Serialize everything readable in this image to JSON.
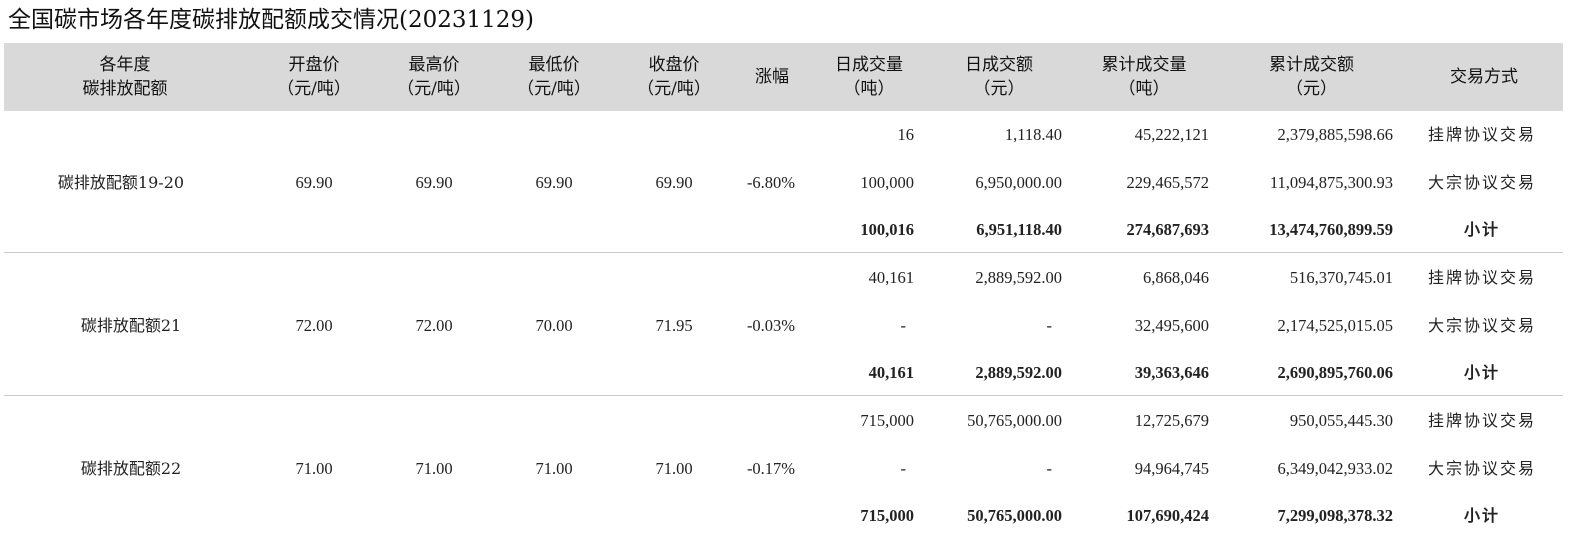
{
  "title": "全国碳市场各年度碳排放配额成交情况(20231129)",
  "headers": [
    {
      "l1": "各年度",
      "l2": "碳排放配额"
    },
    {
      "l1": "开盘价",
      "l2": "（元/吨）"
    },
    {
      "l1": "最高价",
      "l2": "（元/吨）"
    },
    {
      "l1": "最低价",
      "l2": "（元/吨）"
    },
    {
      "l1": "收盘价",
      "l2": "（元/吨）"
    },
    {
      "l1": "涨幅",
      "l2": ""
    },
    {
      "l1": "日成交量",
      "l2": "（吨）"
    },
    {
      "l1": "日成交额",
      "l2": "（元）"
    },
    {
      "l1": "累计成交量",
      "l2": "（吨）"
    },
    {
      "l1": "累计成交额",
      "l2": "（元）"
    },
    {
      "l1": "交易方式",
      "l2": ""
    }
  ],
  "groups": [
    {
      "name": "碳排放配额19-20",
      "open": "69.90",
      "high": "69.90",
      "low": "69.90",
      "close": "69.90",
      "change": "-6.80%",
      "rows": [
        {
          "vol": "16",
          "amt": "1,118.40",
          "cum_vol": "45,222,121",
          "cum_amt": "2,379,885,598.66",
          "mode": "挂牌协议交易"
        },
        {
          "vol": "100,000",
          "amt": "6,950,000.00",
          "cum_vol": "229,465,572",
          "cum_amt": "11,094,875,300.93",
          "mode": "大宗协议交易"
        },
        {
          "vol": "100,016",
          "amt": "6,951,118.40",
          "cum_vol": "274,687,693",
          "cum_amt": "13,474,760,899.59",
          "mode": "小计"
        }
      ]
    },
    {
      "name": "碳排放配额21",
      "open": "72.00",
      "high": "72.00",
      "low": "70.00",
      "close": "71.95",
      "change": "-0.03%",
      "rows": [
        {
          "vol": "40,161",
          "amt": "2,889,592.00",
          "cum_vol": "6,868,046",
          "cum_amt": "516,370,745.01",
          "mode": "挂牌协议交易"
        },
        {
          "vol": "-",
          "amt": "-",
          "cum_vol": "32,495,600",
          "cum_amt": "2,174,525,015.05",
          "mode": "大宗协议交易"
        },
        {
          "vol": "40,161",
          "amt": "2,889,592.00",
          "cum_vol": "39,363,646",
          "cum_amt": "2,690,895,760.06",
          "mode": "小计"
        }
      ]
    },
    {
      "name": "碳排放配额22",
      "open": "71.00",
      "high": "71.00",
      "low": "71.00",
      "close": "71.00",
      "change": "-0.17%",
      "rows": [
        {
          "vol": "715,000",
          "amt": "50,765,000.00",
          "cum_vol": "12,725,679",
          "cum_amt": "950,055,445.30",
          "mode": "挂牌协议交易"
        },
        {
          "vol": "-",
          "amt": "-",
          "cum_vol": "94,964,745",
          "cum_amt": "6,349,042,933.02",
          "mode": "大宗协议交易"
        },
        {
          "vol": "715,000",
          "amt": "50,765,000.00",
          "cum_vol": "107,690,424",
          "cum_amt": "7,299,098,378.32",
          "mode": "小计"
        }
      ]
    }
  ]
}
